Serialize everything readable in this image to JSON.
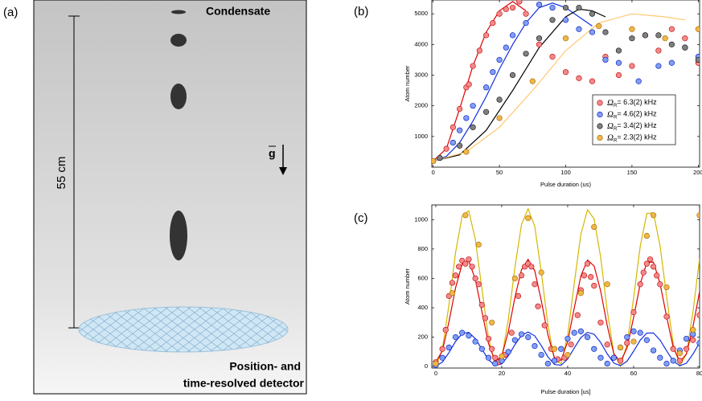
{
  "schematic": {
    "panel_label": "(a)",
    "condensate": "Condensate",
    "height": "55 cm",
    "gravity": "g",
    "detector": [
      "Position- and",
      "time-resolved detector"
    ]
  },
  "chart_data": [
    {
      "type": "scatter",
      "panel_label": "(b)",
      "x_label": "Pulse duration (us)",
      "y_label": "Atom number",
      "xlim": [
        -1,
        201
      ],
      "ylim": [
        0,
        5450
      ],
      "xticks": [
        0,
        50,
        100,
        150,
        200
      ],
      "yticks": [
        1000,
        2000,
        3000,
        4000,
        5000
      ],
      "legend": "lower right",
      "series": [
        {
          "name": "ΩR= 6.3(2) kHz",
          "color": "#f28a8a",
          "edge": "#c00000",
          "x": [
            0,
            10,
            15,
            20,
            25,
            27,
            30,
            35,
            40,
            45,
            50,
            55,
            60,
            65,
            70,
            80,
            90,
            100,
            110,
            120,
            130,
            140,
            150,
            160,
            170,
            180,
            190,
            200
          ],
          "values": [
            200,
            600,
            1300,
            1900,
            2600,
            2700,
            3300,
            3800,
            4300,
            4700,
            5000,
            5150,
            5200,
            5400,
            5000,
            4000,
            3600,
            3100,
            2900,
            2800,
            3600,
            3000,
            3300,
            4300,
            3800,
            4500,
            4200,
            3400
          ]
        },
        {
          "name": "ΩR= 4.6(2) kHz",
          "color": "#7f9ff2",
          "edge": "#0010c0",
          "x": [
            5,
            15,
            20,
            25,
            30,
            40,
            45,
            50,
            55,
            60,
            70,
            80,
            90,
            100,
            110,
            120,
            130,
            140,
            155,
            170,
            180,
            190,
            200
          ],
          "values": [
            300,
            800,
            1200,
            1600,
            2000,
            2600,
            3100,
            3500,
            3900,
            4300,
            4700,
            5300,
            5200,
            4800,
            4500,
            4400,
            3500,
            3400,
            2800,
            3300,
            3400,
            3900,
            3600
          ]
        },
        {
          "name": "ΩR= 3.4(2) kHz",
          "color": "#808080",
          "edge": "#111111",
          "x": [
            5,
            20,
            30,
            40,
            50,
            60,
            70,
            80,
            90,
            100,
            110,
            120,
            130,
            140,
            150,
            160,
            170,
            180,
            190,
            200
          ],
          "values": [
            300,
            700,
            1300,
            1800,
            2200,
            3000,
            3700,
            4200,
            4800,
            5200,
            5200,
            5000,
            4400,
            3800,
            4200,
            4300,
            4300,
            4000,
            3900,
            3500
          ]
        },
        {
          "name": "ΩR= 2.3(2) kHz",
          "color": "#f0b648",
          "edge": "#a06800",
          "x": [
            0,
            25,
            50,
            75,
            100,
            125,
            150,
            175,
            200
          ],
          "values": [
            200,
            500,
            1600,
            2800,
            4200,
            4600,
            4500,
            4200,
            4500
          ]
        }
      ],
      "fits": [
        {
          "color": "#e00000",
          "x": [
            0,
            10,
            20,
            30,
            40,
            50,
            60,
            70
          ],
          "values": [
            200,
            600,
            1900,
            3300,
            4400,
            5100,
            5400,
            5100
          ]
        },
        {
          "color": "#1030e0",
          "x": [
            0,
            10,
            20,
            30,
            40,
            50,
            60,
            70,
            80,
            90,
            100,
            110,
            120
          ],
          "values": [
            200,
            350,
            800,
            1500,
            2300,
            3200,
            4000,
            4700,
            5200,
            5350,
            5200,
            4900,
            4600
          ]
        },
        {
          "color": "#000000",
          "x": [
            0,
            20,
            40,
            60,
            80,
            100,
            110,
            120,
            130
          ],
          "values": [
            200,
            400,
            1200,
            2500,
            3900,
            4900,
            5150,
            5100,
            4900
          ]
        },
        {
          "color": "#ffc870",
          "x": [
            0,
            25,
            50,
            75,
            100,
            125,
            150,
            175,
            190
          ],
          "values": [
            200,
            500,
            1300,
            2500,
            3800,
            4700,
            5000,
            4900,
            4800
          ]
        }
      ]
    },
    {
      "type": "scatter",
      "panel_label": "(c)",
      "x_label": "Pulse duration [us]",
      "y_label": "Atom number",
      "xlim": [
        -1.2,
        80
      ],
      "ylim": [
        -10,
        1100
      ],
      "xticks": [
        0,
        20,
        40,
        60,
        80
      ],
      "yticks": [
        0,
        200,
        400,
        600,
        800,
        1000
      ],
      "series": [
        {
          "color": "#f28a8a",
          "edge": "#c00000",
          "x": [
            0,
            2,
            3,
            4,
            5,
            6,
            7,
            8,
            9,
            10,
            11,
            12,
            13,
            14,
            15,
            16,
            17,
            18,
            19,
            21,
            23,
            25,
            26,
            27,
            28,
            29,
            30,
            31,
            33,
            35,
            37,
            39,
            41,
            43,
            44,
            45,
            46,
            47,
            48,
            50,
            52,
            54,
            56,
            58,
            60,
            62,
            63,
            64,
            65,
            66,
            67,
            68,
            70,
            72,
            74,
            76,
            78,
            80
          ],
          "values": [
            30,
            120,
            250,
            480,
            570,
            620,
            680,
            720,
            700,
            730,
            680,
            600,
            560,
            420,
            330,
            190,
            120,
            60,
            30,
            80,
            230,
            480,
            620,
            680,
            700,
            680,
            560,
            410,
            280,
            120,
            50,
            60,
            150,
            350,
            520,
            620,
            700,
            610,
            550,
            300,
            150,
            60,
            40,
            160,
            370,
            560,
            640,
            700,
            730,
            680,
            620,
            560,
            340,
            120,
            40,
            120,
            180,
            350
          ]
        },
        {
          "color": "#7f9ff2",
          "edge": "#0010c0",
          "x": [
            0,
            2,
            4,
            6,
            8,
            10,
            12,
            14,
            16,
            18,
            20,
            22,
            24,
            26,
            28,
            30,
            32,
            34,
            36,
            38,
            40,
            42,
            44,
            46,
            48,
            50,
            52,
            54,
            56,
            58,
            60,
            62,
            64,
            66,
            68,
            70,
            72,
            74,
            76,
            78,
            80
          ],
          "values": [
            10,
            60,
            130,
            200,
            230,
            210,
            170,
            120,
            60,
            20,
            40,
            100,
            180,
            220,
            200,
            140,
            80,
            20,
            40,
            120,
            190,
            230,
            240,
            200,
            120,
            60,
            20,
            60,
            130,
            200,
            240,
            230,
            180,
            110,
            60,
            20,
            40,
            110,
            190,
            220,
            160
          ]
        },
        {
          "color": "#f0b648",
          "edge": "#a06800",
          "x": [
            0,
            5,
            9,
            13,
            17,
            20,
            24,
            28,
            32,
            36,
            40,
            44,
            48,
            52,
            56,
            60,
            64,
            66,
            70,
            74,
            78,
            80
          ],
          "values": [
            20,
            500,
            1030,
            830,
            300,
            70,
            600,
            1010,
            640,
            120,
            80,
            500,
            950,
            560,
            130,
            170,
            890,
            1030,
            540,
            90,
            250,
            1030
          ]
        }
      ],
      "fits": [
        {
          "color": "#d4b800",
          "x": [
            0,
            2,
            4,
            6,
            8,
            10,
            12,
            14,
            16,
            18,
            20,
            22,
            24,
            26,
            28,
            30,
            32,
            34,
            36,
            38,
            40,
            42,
            44,
            46,
            48,
            50,
            52,
            54,
            56,
            58,
            60,
            62,
            64,
            66,
            68,
            70,
            72,
            74,
            76,
            78,
            80
          ],
          "values": [
            0,
            118,
            420,
            775,
            1024,
            1060,
            866,
            529,
            195,
            11,
            59,
            318,
            674,
            966,
            1074,
            955,
            640,
            285,
            43,
            19,
            217,
            569,
            901,
            1067,
            1005,
            743,
            379,
            88,
            3,
            151,
            469,
            819,
            1042,
            1046,
            823,
            476,
            156,
            4,
            85,
            373,
            736
          ]
        },
        {
          "color": "#e00000",
          "x": [
            0,
            2,
            4,
            6,
            8,
            10,
            12,
            14,
            16,
            18,
            20,
            22,
            24,
            26,
            28,
            30,
            32,
            34,
            36,
            38,
            40,
            42,
            44,
            46,
            48,
            50,
            52,
            54,
            56,
            58,
            60,
            62,
            64,
            66,
            68,
            70,
            72,
            74,
            76,
            78,
            80
          ],
          "values": [
            30,
            107,
            304,
            535,
            697,
            720,
            594,
            374,
            157,
            37,
            69,
            237,
            469,
            659,
            729,
            652,
            447,
            216,
            58,
            43,
            171,
            400,
            617,
            725,
            685,
            514,
            277,
            87,
            32,
            128,
            335,
            563,
            708,
            711,
            566,
            340,
            132,
            33,
            85,
            273,
            510
          ]
        },
        {
          "color": "#1030e0",
          "x": [
            0,
            2,
            4,
            6,
            8,
            10,
            12,
            14,
            16,
            18,
            20,
            22,
            24,
            26,
            28,
            30,
            32,
            34,
            36,
            38,
            40,
            42,
            44,
            46,
            48,
            50,
            52,
            54,
            56,
            58,
            60,
            62,
            64,
            66,
            68,
            70,
            72,
            74,
            76,
            78,
            80
          ],
          "values": [
            5,
            30,
            95,
            171,
            224,
            232,
            190,
            118,
            47,
            7,
            18,
            73,
            149,
            212,
            235,
            209,
            142,
            66,
            14,
            9,
            51,
            127,
            198,
            233,
            220,
            164,
            86,
            24,
            6,
            37,
            105,
            180,
            228,
            229,
            181,
            107,
            38,
            6,
            23,
            85,
            163
          ]
        }
      ]
    }
  ]
}
